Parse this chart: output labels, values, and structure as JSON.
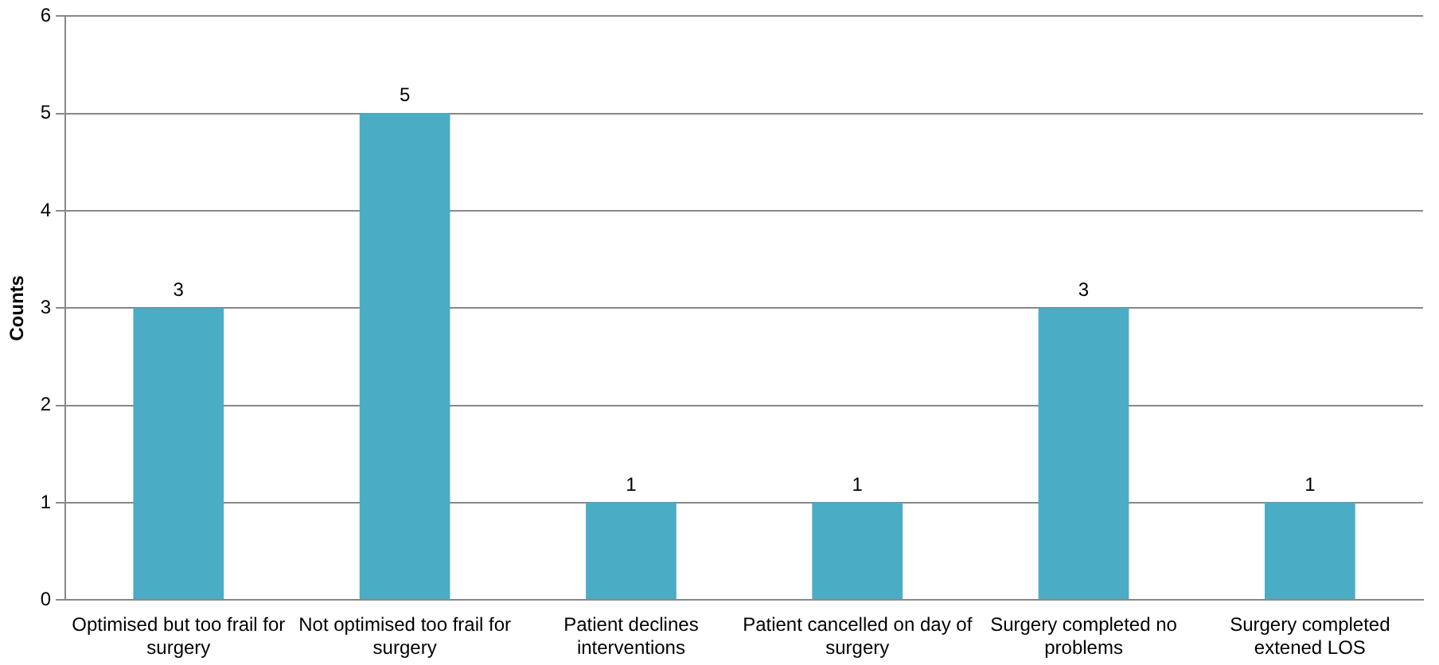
{
  "chart_data": {
    "type": "bar",
    "ylabel": "Counts",
    "categories": [
      "Optimised but too frail for surgery",
      "Not optimised too frail for surgery",
      "Patient declines interventions",
      "Patient cancelled on day of surgery",
      "Surgery completed no problems",
      "Surgery completed extened LOS"
    ],
    "values": [
      3,
      5,
      1,
      1,
      3,
      1
    ],
    "color": "#4bacc6",
    "ylim": [
      0,
      6
    ],
    "yticks": [
      0,
      1,
      2,
      3,
      4,
      5,
      6
    ],
    "grid": "y",
    "data_labels": true,
    "legend": false
  }
}
